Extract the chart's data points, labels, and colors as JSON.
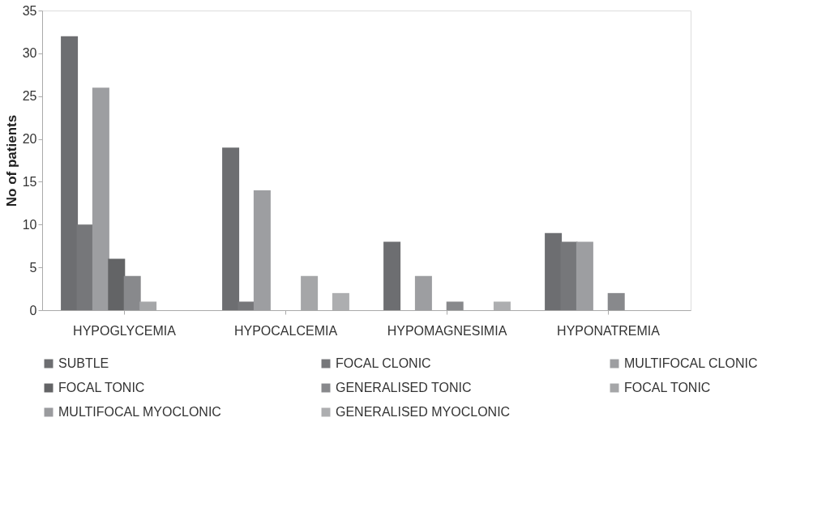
{
  "chart_data": {
    "type": "bar",
    "ylabel": "No of patients",
    "categories": [
      "HYPOGLYCEMIA",
      "HYPOCALCEMIA",
      "HYPOMAGNESIMIA",
      "HYPONATREMIA"
    ],
    "series": [
      {
        "name": "SUBTLE",
        "color": "#6d6e71",
        "values": [
          32,
          19,
          8,
          9
        ]
      },
      {
        "name": "FOCAL CLONIC",
        "color": "#76777a",
        "values": [
          10,
          1,
          0,
          8
        ]
      },
      {
        "name": "MULTIFOCAL CLONIC",
        "color": "#9d9ea1",
        "values": [
          26,
          14,
          4,
          8
        ]
      },
      {
        "name": "FOCAL TONIC",
        "color": "#636466",
        "values": [
          6,
          0,
          0,
          0
        ]
      },
      {
        "name": "GENERALISED TONIC",
        "color": "#88898c",
        "values": [
          4,
          0,
          1,
          2
        ]
      },
      {
        "name": "FOCAL TONIC",
        "color": "#a5a6a8",
        "values": [
          1,
          4,
          0,
          0
        ]
      },
      {
        "name": "MULTIFOCAL MYOCLONIC",
        "color": "#9a9b9e",
        "values": [
          0,
          0,
          0,
          0
        ]
      },
      {
        "name": "GENERALISED MYOCLONIC",
        "color": "#adaeb0",
        "values": [
          0,
          2,
          1,
          0
        ]
      }
    ],
    "ylim": [
      0,
      35
    ],
    "yticks": [
      0,
      5,
      10,
      15,
      20,
      25,
      30,
      35
    ],
    "grid": false,
    "legend": "bottom"
  }
}
